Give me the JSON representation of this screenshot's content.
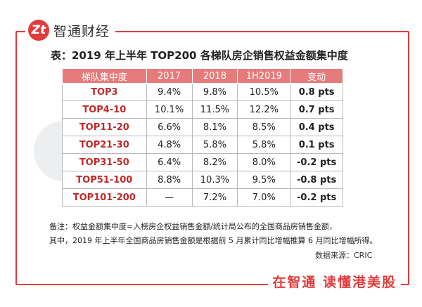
{
  "brand": {
    "logo_mark": "Zt",
    "name": "智通财经"
  },
  "title": "表：2019 年上半年 TOP200 各梯队房企销售权益金额集中度",
  "table": {
    "headers": [
      "梯队集中度",
      "2017",
      "2018",
      "1H2019",
      "变动"
    ],
    "rows": [
      [
        "TOP3",
        "9.4%",
        "9.8%",
        "10.5%",
        "0.8 pts"
      ],
      [
        "TOP4-10",
        "10.1%",
        "11.5%",
        "12.2%",
        "0.7 pts"
      ],
      [
        "TOP11-20",
        "6.6%",
        "8.1%",
        "8.5%",
        "0.4 pts"
      ],
      [
        "TOP21-30",
        "4.8%",
        "5.8%",
        "5.8%",
        "0.1 pts"
      ],
      [
        "TOP31-50",
        "6.4%",
        "8.2%",
        "8.0%",
        "-0.2 pts"
      ],
      [
        "TOP51-100",
        "8.8%",
        "10.3%",
        "9.5%",
        "-0.8 pts"
      ],
      [
        "TOP101-200",
        "—",
        "7.2%",
        "7.0%",
        "-0.2 pts"
      ]
    ]
  },
  "notes": {
    "line1": "备注：权益金额集中度=入榜房企权益销售金额/统计局公布的全国商品房销售金额，",
    "line2": "其中，2019 年上半年全国商品房销售金额是根据前 5 月累计同比增幅推算 6 月同比增幅所得。"
  },
  "source": "数据来源：CRIC",
  "slogan": "在智通  读懂港美股",
  "watermark": "智通财经",
  "colors": {
    "accent": "#e23b3b",
    "header": "#e67b7b",
    "tier_text": "#c02a2a"
  }
}
